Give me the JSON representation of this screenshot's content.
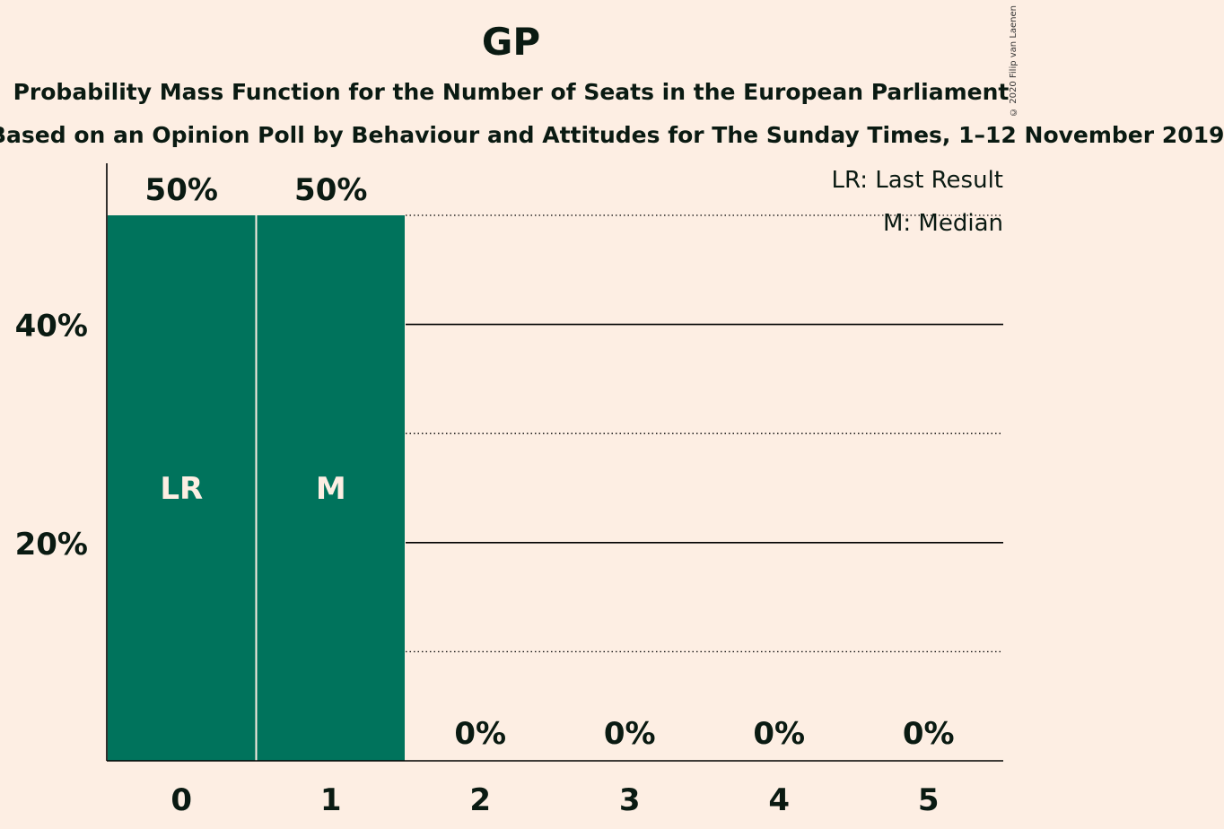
{
  "header": {
    "title": "GP",
    "subtitle": "Probability Mass Function for the Number of Seats in the European Parliament",
    "subtitle2": "Based on an Opinion Poll by Behaviour and Attitudes for The Sunday Times, 1–12 November 2019",
    "copyright": "© 2020 Filip van Laenen"
  },
  "legend": {
    "lr": "LR: Last Result",
    "m": "M: Median"
  },
  "colors": {
    "background": "#FDEEE3",
    "bar": "#00735C",
    "axis": "#000000"
  },
  "chart_data": {
    "type": "bar",
    "title": "GP",
    "categories": [
      "0",
      "1",
      "2",
      "3",
      "4",
      "5"
    ],
    "values": [
      50,
      50,
      0,
      0,
      0,
      0
    ],
    "value_labels": [
      "50%",
      "50%",
      "0%",
      "0%",
      "0%",
      "0%"
    ],
    "bar_markers": [
      "LR",
      "M",
      "",
      "",
      "",
      ""
    ],
    "y_ticks": [
      20,
      40
    ],
    "y_tick_labels": [
      "20%",
      "40%"
    ],
    "y_solid_gridlines": [
      20,
      40
    ],
    "y_dotted_gridlines": [
      10,
      30,
      50
    ],
    "ylim": [
      0,
      54.5
    ],
    "legend_position": "top-right",
    "xlabel": "",
    "ylabel": ""
  }
}
